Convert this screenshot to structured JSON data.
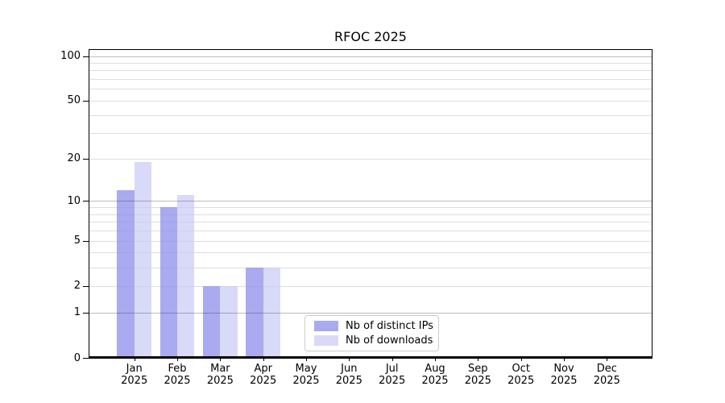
{
  "title": "RFOC 2025",
  "chart_data": {
    "type": "bar",
    "title": "RFOC 2025",
    "xlabel": "",
    "ylabel": "",
    "yscale": "log1p",
    "ylim": [
      0,
      111
    ],
    "categories": [
      "Jan",
      "Feb",
      "Mar",
      "Apr",
      "May",
      "Jun",
      "Jul",
      "Aug",
      "Sep",
      "Oct",
      "Nov",
      "Dec"
    ],
    "x_year_label": "2025",
    "series": [
      {
        "name": "Nb of distinct IPs",
        "color": "#aaaaf0",
        "values": [
          12,
          9,
          2,
          3,
          0,
          0,
          0,
          0,
          0,
          0,
          0,
          0
        ]
      },
      {
        "name": "Nb of downloads",
        "color": "#d9d9f8",
        "values": [
          19,
          11,
          2,
          3,
          0,
          0,
          0,
          0,
          0,
          0,
          0,
          0
        ]
      }
    ],
    "y_ticks": [
      {
        "value": 0,
        "label": "0"
      },
      {
        "value": 1,
        "label": "1"
      },
      {
        "value": 2,
        "label": "2"
      },
      {
        "value": 5,
        "label": "5"
      },
      {
        "value": 10,
        "label": "10"
      },
      {
        "value": 20,
        "label": "20"
      },
      {
        "value": 50,
        "label": "50"
      },
      {
        "value": 100,
        "label": "100"
      }
    ],
    "grid": {
      "major_values": [
        1,
        10,
        100
      ],
      "minor_values": [
        2,
        3,
        4,
        5,
        6,
        7,
        8,
        9,
        20,
        30,
        40,
        50,
        60,
        70,
        80,
        90
      ],
      "major_color": "rgba(0,0,0,0.26)",
      "minor_color": "rgba(0,0,0,0.09)"
    },
    "legend": {
      "position": "lower-center"
    }
  },
  "colors": {
    "background": "#ffffff",
    "spine": "#000000",
    "text": "#000000"
  }
}
